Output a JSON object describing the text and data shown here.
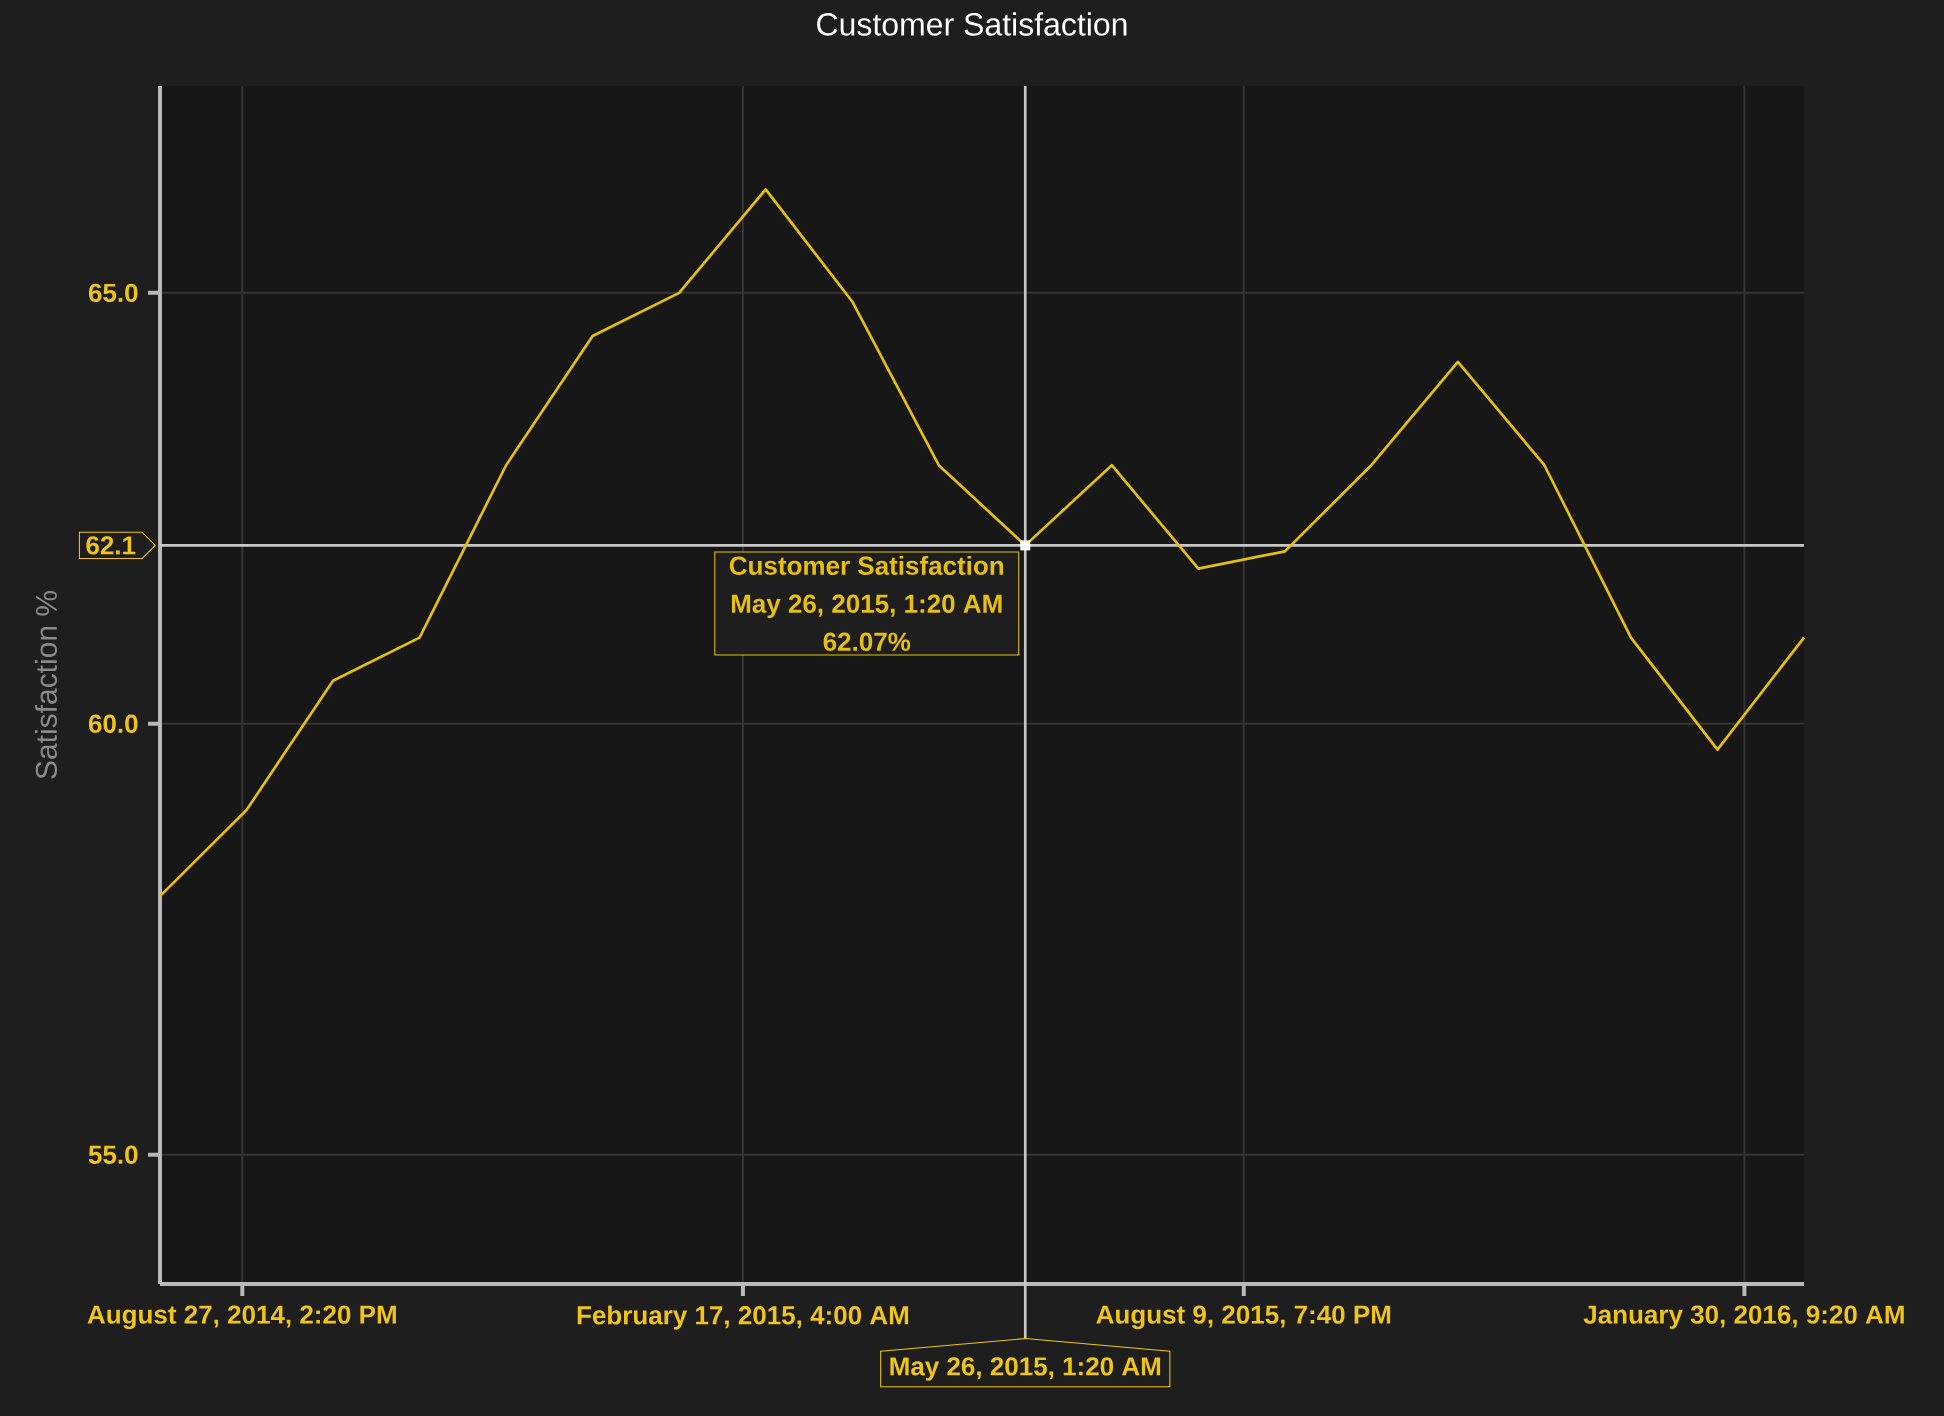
{
  "chart_data": {
    "type": "line",
    "title": "Customer Satisfaction",
    "ylabel": "Satisfaction %",
    "x": [
      "2014-07-30T01:20",
      "2014-08-29T01:20",
      "2014-09-28T01:20",
      "2014-10-28T01:20",
      "2014-11-27T01:20",
      "2014-12-27T01:20",
      "2015-01-26T01:20",
      "2015-02-25T01:20",
      "2015-03-27T01:20",
      "2015-04-26T01:20",
      "2015-05-26T01:20",
      "2015-06-25T01:20",
      "2015-07-25T01:20",
      "2015-08-24T01:20",
      "2015-09-23T01:20",
      "2015-10-23T01:20",
      "2015-11-22T01:20",
      "2015-12-22T01:20",
      "2016-01-21T01:20",
      "2016-02-20T01:20"
    ],
    "series": [
      {
        "name": "Customer Satisfaction",
        "color": "#e6bf10",
        "values": [
          58.0,
          59.0,
          60.5,
          61.0,
          63.0,
          64.5,
          65.0,
          66.2,
          64.9,
          63.0,
          62.07,
          63.0,
          61.8,
          62.0,
          63.0,
          64.2,
          63.0,
          61.0,
          59.7,
          61.0
        ]
      }
    ],
    "xlim": [
      "2014-07-30T01:20",
      "2016-02-20T01:20"
    ],
    "xticks": [
      {
        "value": "2014-08-27T14:20",
        "label": "August 27, 2014, 2:20 PM"
      },
      {
        "value": "2015-02-17T04:00",
        "label": "February 17, 2015, 4:00 AM"
      },
      {
        "value": "2015-08-09T19:40",
        "label": "August 9, 2015, 7:40 PM"
      },
      {
        "value": "2016-01-30T09:20",
        "label": "January 30, 2016, 9:20 AM"
      }
    ],
    "ylim": [
      53.5,
      67.4
    ],
    "yticks": [
      {
        "value": 55,
        "label": "55.0"
      },
      {
        "value": 60,
        "label": "60.0"
      },
      {
        "value": 65,
        "label": "65.0"
      }
    ],
    "grid": true,
    "line_style": "solid",
    "ref_lines": [
      {
        "axis": "x",
        "value": "2015-05-26T01:20",
        "label": "May 26, 2015, 1:20 AM",
        "color": "#c8c8c8"
      },
      {
        "axis": "y",
        "value": 62.07,
        "label": "62.1",
        "color": "#c8c8c8"
      }
    ],
    "annotations": [
      {
        "text": "May 26, 2015, 1:20 AM",
        "x": "2015-05-26T01:20",
        "y": 62.07
      },
      "62.07%"
    ]
  }
}
